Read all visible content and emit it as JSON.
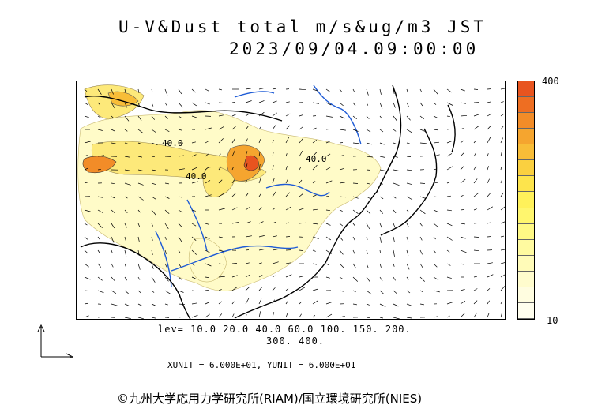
{
  "title": {
    "line1": "U-V&Dust total m/s&ug/m3 JST",
    "line2": "2023/09/04.09:00:00"
  },
  "colorbar": {
    "max_label": "400",
    "min_label": "10",
    "colors": [
      "#e8541f",
      "#ee6e22",
      "#f28c28",
      "#f5a52f",
      "#f8bd38",
      "#fad040",
      "#fde44c",
      "#fff15a",
      "#fff66e",
      "#fff985",
      "#fffaa0",
      "#fffbb8",
      "#fffccd",
      "#fffde0",
      "#fffeee"
    ]
  },
  "levels": {
    "line1": "lev= 10.0 20.0 40.0 60.0 100. 150. 200.",
    "line2": "300. 400."
  },
  "units": "XUNIT = 6.000E+01, YUNIT = 6.000E+01",
  "contour_labels": [
    "40.0",
    "40.0",
    "40.0"
  ],
  "copyright": "©九州大学応用力学研究所(RIAM)/国立環境研究所(NIES)"
}
